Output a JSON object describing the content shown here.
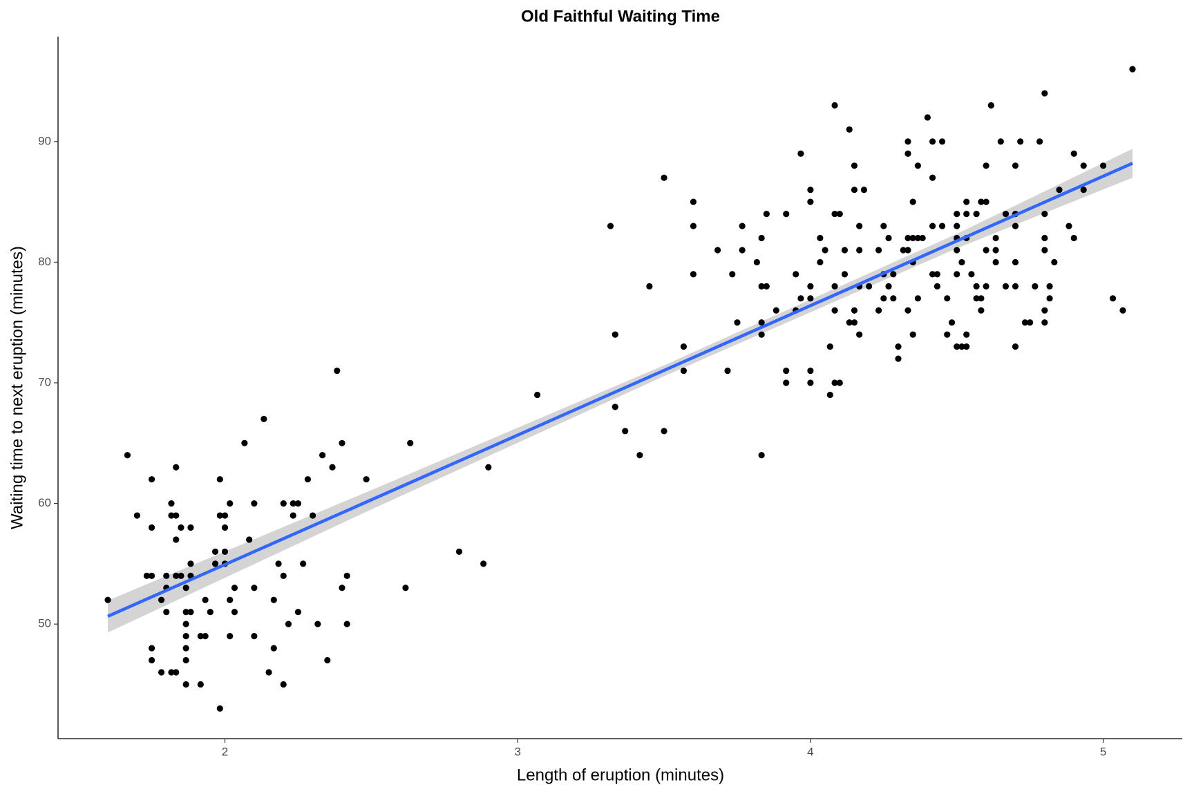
{
  "chart_data": {
    "type": "scatter",
    "title": "Old Faithful Waiting Time",
    "x_label": "Length of eruption (minutes)",
    "y_label": "Waiting time to next eruption (minutes)",
    "xlim": [
      1.43,
      5.27
    ],
    "ylim": [
      40.5,
      98.7
    ],
    "xticks": [
      2,
      3,
      4,
      5
    ],
    "yticks": [
      50,
      60,
      70,
      80,
      90
    ],
    "grid": false,
    "color": "#000000",
    "x": [
      1.6,
      1.667,
      1.7,
      1.733,
      1.75,
      1.75,
      1.75,
      1.75,
      1.75,
      1.783,
      1.783,
      1.8,
      1.8,
      1.8,
      1.817,
      1.817,
      1.817,
      1.833,
      1.833,
      1.833,
      1.833,
      1.833,
      1.85,
      1.85,
      1.867,
      1.867,
      1.867,
      1.867,
      1.867,
      1.867,
      1.867,
      1.883,
      1.883,
      1.883,
      1.883,
      1.917,
      1.917,
      1.933,
      1.933,
      1.95,
      1.967,
      1.967,
      1.983,
      1.983,
      1.983,
      2.0,
      2.0,
      2.0,
      2.0,
      2.017,
      2.017,
      2.017,
      2.033,
      2.033,
      2.067,
      2.083,
      2.1,
      2.1,
      2.1,
      2.133,
      2.15,
      2.167,
      2.167,
      2.183,
      2.2,
      2.2,
      2.2,
      2.217,
      2.233,
      2.233,
      2.25,
      2.25,
      2.267,
      2.283,
      2.3,
      2.317,
      2.333,
      2.35,
      2.367,
      2.383,
      2.4,
      2.4,
      2.417,
      2.417,
      2.483,
      2.617,
      2.633,
      2.8,
      2.883,
      2.9,
      3.067,
      3.317,
      3.333,
      3.333,
      3.367,
      3.417,
      3.45,
      3.5,
      3.5,
      3.567,
      3.567,
      3.6,
      3.6,
      3.6,
      3.683,
      3.717,
      3.733,
      3.75,
      3.767,
      3.767,
      3.817,
      3.833,
      3.833,
      3.833,
      3.833,
      3.833,
      3.85,
      3.85,
      3.883,
      3.917,
      3.917,
      3.917,
      3.95,
      3.95,
      3.967,
      3.967,
      4.0,
      4.0,
      4.0,
      4.0,
      4.0,
      4.0,
      4.033,
      4.033,
      4.05,
      4.067,
      4.067,
      4.083,
      4.083,
      4.083,
      4.083,
      4.083,
      4.1,
      4.1,
      4.117,
      4.117,
      4.133,
      4.133,
      4.15,
      4.15,
      4.15,
      4.15,
      4.167,
      4.167,
      4.167,
      4.167,
      4.183,
      4.2,
      4.233,
      4.233,
      4.25,
      4.25,
      4.25,
      4.267,
      4.267,
      4.283,
      4.283,
      4.3,
      4.3,
      4.317,
      4.333,
      4.333,
      4.333,
      4.333,
      4.333,
      4.35,
      4.35,
      4.35,
      4.35,
      4.367,
      4.367,
      4.367,
      4.383,
      4.4,
      4.417,
      4.417,
      4.417,
      4.417,
      4.433,
      4.433,
      4.45,
      4.45,
      4.467,
      4.467,
      4.483,
      4.5,
      4.5,
      4.5,
      4.5,
      4.5,
      4.5,
      4.517,
      4.517,
      4.533,
      4.533,
      4.533,
      4.533,
      4.533,
      4.55,
      4.567,
      4.567,
      4.567,
      4.583,
      4.583,
      4.583,
      4.6,
      4.6,
      4.6,
      4.6,
      4.617,
      4.633,
      4.633,
      4.633,
      4.65,
      4.667,
      4.667,
      4.7,
      4.7,
      4.7,
      4.7,
      4.7,
      4.7,
      4.717,
      4.733,
      4.75,
      4.767,
      4.783,
      4.8,
      4.8,
      4.8,
      4.8,
      4.8,
      4.8,
      4.817,
      4.817,
      4.833,
      4.85,
      4.883,
      4.9,
      4.9,
      4.933,
      4.933,
      5.0,
      5.033,
      5.067,
      5.1
    ],
    "values": [
      52,
      64,
      59,
      54,
      54,
      62,
      58,
      48,
      47,
      52,
      46,
      53,
      51,
      54,
      60,
      59,
      46,
      63,
      57,
      54,
      59,
      46,
      54,
      58,
      53,
      51,
      50,
      49,
      48,
      47,
      45,
      58,
      55,
      54,
      51,
      45,
      49,
      49,
      52,
      51,
      56,
      55,
      62,
      59,
      43,
      59,
      58,
      56,
      55,
      60,
      52,
      49,
      53,
      51,
      65,
      57,
      60,
      53,
      49,
      67,
      46,
      52,
      48,
      55,
      60,
      54,
      45,
      50,
      59,
      60,
      60,
      51,
      55,
      62,
      59,
      50,
      64,
      47,
      63,
      71,
      65,
      53,
      54,
      50,
      62,
      53,
      65,
      56,
      55,
      63,
      69,
      83,
      74,
      68,
      66,
      64,
      78,
      87,
      66,
      73,
      71,
      85,
      83,
      79,
      81,
      71,
      79,
      75,
      83,
      81,
      80,
      82,
      78,
      75,
      74,
      64,
      84,
      78,
      76,
      84,
      71,
      70,
      79,
      76,
      89,
      77,
      86,
      85,
      78,
      77,
      71,
      70,
      82,
      80,
      81,
      73,
      69,
      93,
      84,
      78,
      76,
      70,
      84,
      70,
      81,
      79,
      91,
      75,
      88,
      86,
      76,
      75,
      83,
      81,
      78,
      74,
      86,
      78,
      81,
      76,
      83,
      79,
      77,
      82,
      78,
      79,
      77,
      73,
      72,
      81,
      90,
      89,
      82,
      81,
      76,
      85,
      82,
      80,
      74,
      88,
      82,
      77,
      82,
      92,
      87,
      83,
      79,
      90,
      79,
      78,
      90,
      83,
      77,
      74,
      75,
      84,
      83,
      82,
      81,
      79,
      73,
      80,
      73,
      85,
      84,
      82,
      74,
      73,
      79,
      84,
      78,
      77,
      85,
      77,
      76,
      88,
      85,
      81,
      78,
      93,
      82,
      81,
      80,
      90,
      84,
      78,
      88,
      84,
      83,
      80,
      78,
      73,
      90,
      75,
      75,
      78,
      90,
      94,
      84,
      82,
      81,
      76,
      75,
      78,
      77,
      80,
      86,
      83,
      89,
      82,
      88,
      86,
      88,
      77,
      76,
      96
    ],
    "fit": {
      "color": "#3366ff",
      "x": [
        1.6,
        5.1
      ],
      "values": [
        50.64,
        88.2
      ]
    },
    "band": {
      "color": "#cccccc",
      "x": [
        1.6,
        2.5,
        3.5,
        4.5,
        5.1
      ],
      "lower": [
        49.3,
        59.5,
        70.55,
        81.15,
        87.0
      ],
      "upper": [
        51.95,
        61.1,
        71.45,
        82.35,
        89.4
      ]
    }
  }
}
